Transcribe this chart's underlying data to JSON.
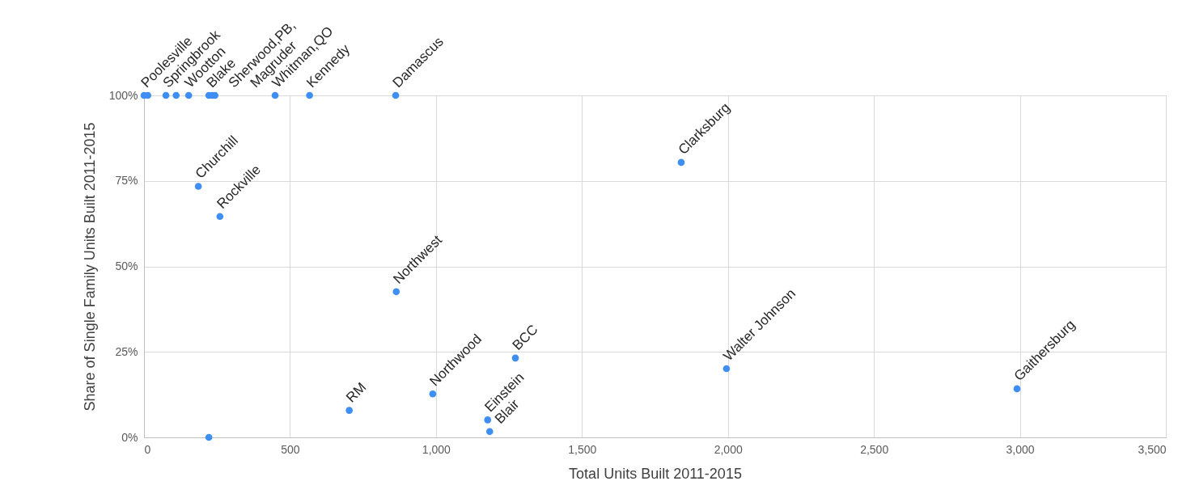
{
  "chart_data": {
    "type": "scatter",
    "xlabel": "Total Units Built 2011-2015",
    "ylabel": "Share of Single Family Units Built 2011-2015",
    "x": [
      0,
      13,
      75,
      110,
      153,
      222,
      234,
      243,
      449,
      567,
      862,
      186,
      260,
      1840,
      864,
      1272,
      1995,
      2990,
      222,
      703,
      989,
      1177,
      1184
    ],
    "values": [
      100,
      100,
      100,
      100,
      100,
      100,
      100,
      100,
      100,
      100,
      100,
      73.4,
      64.6,
      80.4,
      42.6,
      23.2,
      20.1,
      14.2,
      0,
      7.9,
      12.7,
      5.1,
      1.7
    ],
    "color": "#3f8ef3",
    "marker": "circle",
    "grid": true,
    "xlim": [
      0,
      3500
    ],
    "xticks": [
      0,
      500,
      {
        "value": 1000,
        "label": "1,000"
      },
      {
        "value": 1500,
        "label": "1,500"
      },
      {
        "value": 2000,
        "label": "2,000"
      },
      {
        "value": 2500,
        "label": "2,500"
      },
      {
        "value": 3000,
        "label": "3,000"
      },
      {
        "value": 3500,
        "label": "3,500"
      }
    ],
    "ylim": [
      0,
      100
    ],
    "yticks": [
      {
        "value": 0,
        "label": "0%"
      },
      {
        "value": 25,
        "label": "25%"
      },
      {
        "value": 50,
        "label": "50%"
      },
      {
        "value": 75,
        "label": "75%"
      },
      {
        "value": 100,
        "label": "100%"
      }
    ],
    "annotations": [
      {
        "text": "Poolesville",
        "x": 0,
        "y": 100
      },
      {
        "text": "Springbrook",
        "x": 13,
        "y": 100
      },
      {
        "text": "Wootton",
        "x": 75,
        "y": 100
      },
      {
        "text": "Blake",
        "x": 110,
        "y": 100
      },
      {
        "text": "Sherwood,PB,",
        "x": 153,
        "y": 100
      },
      {
        "text": "Magruder",
        "x": 222,
        "y": 100
      },
      {
        "text": "Whitman,QO",
        "x": 449,
        "y": 100
      },
      {
        "text": "Kennedy",
        "x": 567,
        "y": 100
      },
      {
        "text": "Damascus",
        "x": 862,
        "y": 100
      },
      {
        "text": "Churchill",
        "x": 186,
        "y": 73.4
      },
      {
        "text": "Rockville",
        "x": 260,
        "y": 64.6
      },
      {
        "text": "Clarksburg",
        "x": 1840,
        "y": 80.4
      },
      {
        "text": "Northwest",
        "x": 864,
        "y": 42.6
      },
      {
        "text": "BCC",
        "x": 1272,
        "y": 23.2
      },
      {
        "text": "Walter Johnson",
        "x": 1995,
        "y": 20.1
      },
      {
        "text": "Gaithersburg",
        "x": 2990,
        "y": 14.2
      },
      {
        "text": "RM",
        "x": 703,
        "y": 7.9
      },
      {
        "text": "Northwood",
        "x": 989,
        "y": 12.7
      },
      {
        "text": "Einstein",
        "x": 1177,
        "y": 5.1
      },
      {
        "text": "Blair",
        "x": 1184,
        "y": 1.7
      }
    ]
  }
}
